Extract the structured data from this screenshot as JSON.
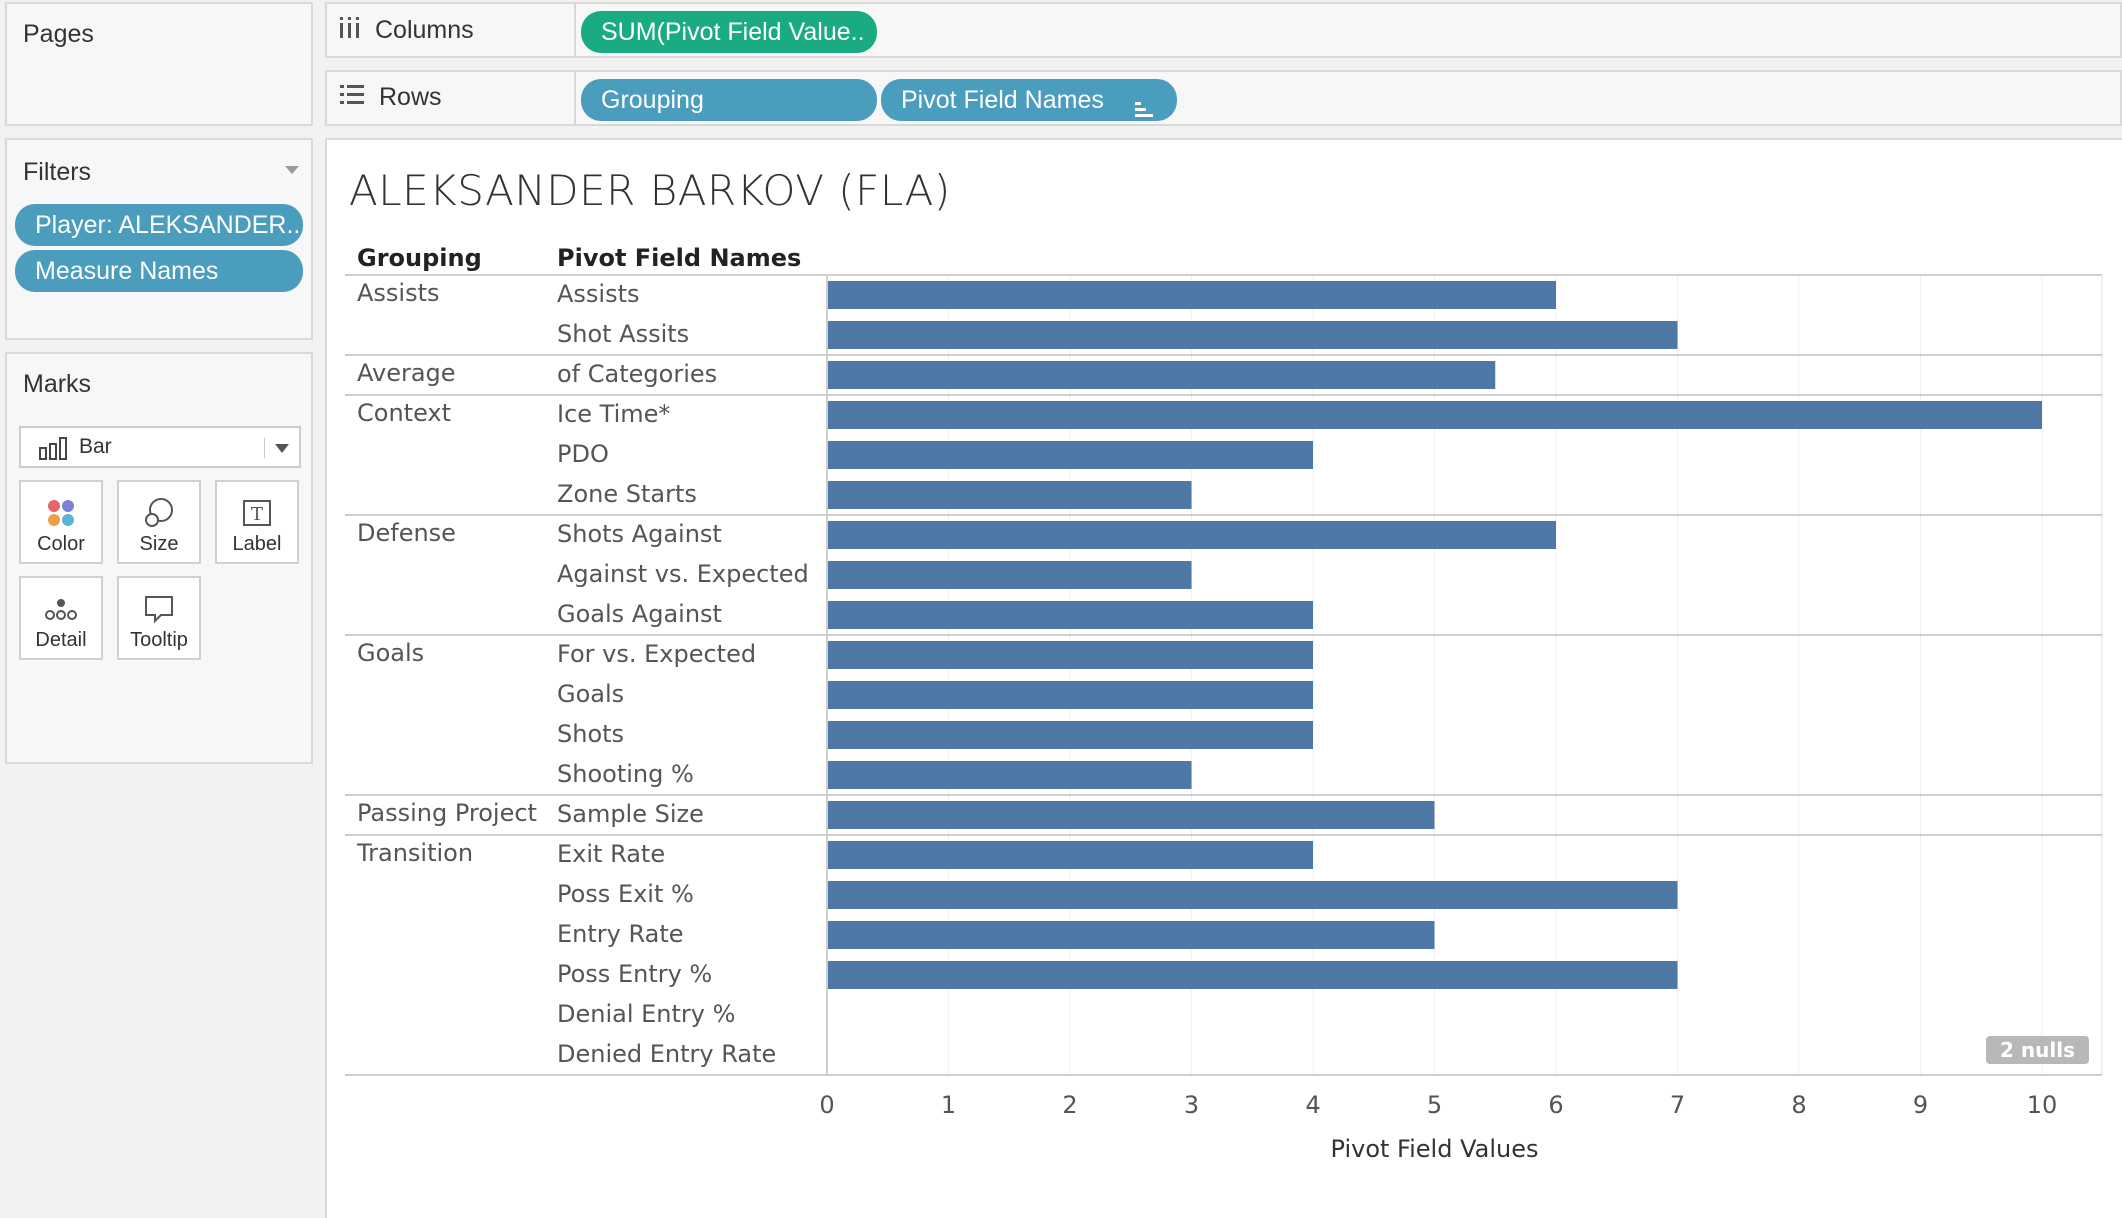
{
  "pages": {
    "title": "Pages"
  },
  "filters": {
    "title": "Filters",
    "items": [
      "Player: ALEKSANDER..",
      "Measure Names"
    ]
  },
  "marks": {
    "title": "Marks",
    "type": "Bar",
    "buttons": {
      "color": "Color",
      "size": "Size",
      "label": "Label",
      "detail": "Detail",
      "tooltip": "Tooltip"
    }
  },
  "columns": {
    "label": "Columns",
    "pill": "SUM(Pivot Field Value.."
  },
  "rows": {
    "label": "Rows",
    "pills": [
      "Grouping",
      "Pivot Field Names"
    ]
  },
  "nulls_badge": "2 nulls",
  "chart_data": {
    "type": "bar",
    "title": "ALEKSANDER BARKOV (FLA)",
    "row_headers": [
      "Grouping",
      "Pivot Field Names"
    ],
    "xlabel": "Pivot Field Values",
    "xlim": [
      0,
      10
    ],
    "x_ticks": [
      "0",
      "1",
      "2",
      "3",
      "4",
      "5",
      "6",
      "7",
      "8",
      "9",
      "10"
    ],
    "bar_color": "#4e79a7",
    "rows": [
      {
        "group": "Assists",
        "name": "Assists",
        "value": 6
      },
      {
        "group": "",
        "name": "Shot Assits",
        "value": 7
      },
      {
        "group": "Average",
        "name": "of Categories",
        "value": 5.5
      },
      {
        "group": "Context",
        "name": "Ice Time*",
        "value": 10
      },
      {
        "group": "",
        "name": "PDO",
        "value": 4
      },
      {
        "group": "",
        "name": "Zone Starts",
        "value": 3
      },
      {
        "group": "Defense",
        "name": "Shots Against",
        "value": 6
      },
      {
        "group": "",
        "name": "Against vs. Expected",
        "value": 3
      },
      {
        "group": "",
        "name": "Goals Against",
        "value": 4
      },
      {
        "group": "Goals",
        "name": "For vs. Expected",
        "value": 4
      },
      {
        "group": "",
        "name": "Goals",
        "value": 4
      },
      {
        "group": "",
        "name": "Shots",
        "value": 4
      },
      {
        "group": "",
        "name": "Shooting %",
        "value": 3
      },
      {
        "group": "Passing Project",
        "name": "Sample Size",
        "value": 5
      },
      {
        "group": "Transition",
        "name": "Exit Rate",
        "value": 4
      },
      {
        "group": "",
        "name": "Poss Exit %",
        "value": 7
      },
      {
        "group": "",
        "name": "Entry Rate",
        "value": 5
      },
      {
        "group": "",
        "name": "Poss Entry %",
        "value": 7
      },
      {
        "group": "",
        "name": "Denial Entry %",
        "value": null
      },
      {
        "group": "",
        "name": "Denied Entry Rate",
        "value": null
      }
    ]
  }
}
